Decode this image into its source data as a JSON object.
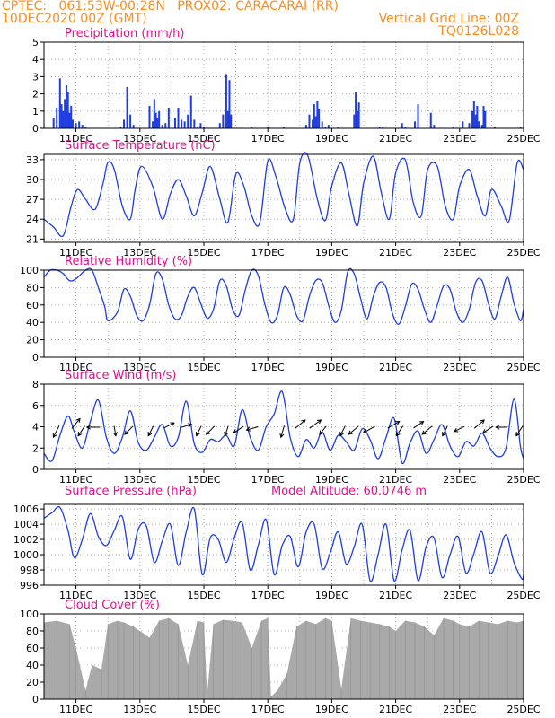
{
  "header": {
    "line1_left": "CPTEC:   061:53W-00:28N   PROX02: CARACARAI (RR)",
    "line2_left": "10DEC2020 00Z (GMT)",
    "line2_right": "Vertical Grid Line: 00Z",
    "line3_right": "TQ0126L028"
  },
  "colors": {
    "header": "#ff8c1a",
    "title": "#e0118c",
    "series": "#1f3de0",
    "cloud": "#a9a9a9",
    "arrows": "#000000"
  },
  "x_axis": {
    "ticks": [
      "11DEC",
      "13DEC",
      "15DEC",
      "17DEC",
      "19DEC",
      "21DEC",
      "23DEC",
      "25DEC"
    ],
    "range_days": [
      10,
      25
    ]
  },
  "chart_data": [
    {
      "id": "precip",
      "type": "bar",
      "title": "Precipitation (mm/h)",
      "ylim": [
        0,
        5
      ],
      "yticks": [
        "0",
        "1",
        "2",
        "3",
        "4",
        "5"
      ],
      "grid": true,
      "values_days": [
        10.3,
        10.4,
        10.5,
        10.55,
        10.6,
        10.65,
        10.7,
        10.75,
        10.8,
        10.85,
        10.9,
        11.0,
        11.1,
        11.2,
        11.3,
        12.4,
        12.5,
        12.6,
        12.7,
        12.8,
        13.3,
        13.4,
        13.45,
        13.5,
        13.55,
        13.6,
        13.7,
        13.8,
        13.9,
        14.1,
        14.2,
        14.3,
        14.4,
        14.5,
        14.6,
        14.7,
        14.8,
        14.9,
        15.0,
        15.5,
        15.6,
        15.7,
        15.75,
        15.8,
        15.85,
        16.5,
        17.0,
        17.5,
        18.2,
        18.3,
        18.4,
        18.45,
        18.5,
        18.55,
        18.6,
        18.7,
        18.8,
        18.9,
        19.2,
        19.7,
        19.75,
        19.8,
        19.85,
        20.5,
        20.6,
        21.2,
        21.3,
        21.6,
        21.7,
        22.1,
        22.2,
        22.8,
        23.1,
        23.3,
        23.4,
        23.45,
        23.5,
        23.55,
        23.6,
        23.7,
        23.75,
        23.8,
        24.1,
        24.9
      ],
      "values_mm": [
        0.6,
        1.2,
        2.9,
        1.4,
        1.0,
        1.7,
        2.5,
        2.1,
        0.9,
        1.3,
        0.5,
        0.3,
        0.4,
        0.2,
        0.1,
        0.1,
        0.5,
        2.4,
        0.8,
        0.2,
        1.3,
        0.4,
        1.7,
        0.9,
        0.6,
        1.0,
        0.2,
        0.3,
        1.2,
        0.6,
        1.2,
        0.5,
        0.4,
        0.8,
        1.9,
        0.5,
        0.1,
        0.3,
        0.1,
        0.3,
        0.8,
        3.1,
        1.0,
        2.8,
        0.8,
        0.1,
        0.1,
        0.1,
        0.2,
        0.8,
        0.5,
        1.4,
        0.7,
        1.6,
        1.1,
        0.4,
        0.1,
        0.2,
        0.1,
        0.8,
        2.1,
        1.0,
        1.5,
        0.1,
        0.1,
        0.3,
        0.1,
        0.4,
        1.4,
        0.9,
        0.2,
        0.1,
        0.4,
        0.3,
        1.0,
        1.6,
        0.8,
        1.3,
        0.4,
        0.2,
        1.3,
        1.0,
        0.1,
        0.1
      ]
    },
    {
      "id": "temp",
      "type": "line",
      "title": "Surface Temperature (nC)",
      "ylim": [
        20.5,
        33.8
      ],
      "yticks": [
        "21",
        "24",
        "27",
        "30",
        "33"
      ],
      "grid": true,
      "x_days": [
        10.0,
        10.3,
        10.6,
        10.85,
        11.05,
        11.3,
        11.6,
        11.85,
        12.0,
        12.2,
        12.45,
        12.7,
        12.85,
        13.05,
        13.4,
        13.7,
        13.95,
        14.2,
        14.45,
        14.7,
        14.95,
        15.2,
        15.5,
        15.75,
        16.0,
        16.25,
        16.5,
        16.75,
        17.0,
        17.25,
        17.55,
        17.8,
        18.0,
        18.25,
        18.55,
        18.8,
        19.0,
        19.3,
        19.55,
        19.8,
        20.0,
        20.3,
        20.55,
        20.8,
        21.0,
        21.3,
        21.55,
        21.8,
        22.0,
        22.3,
        22.55,
        22.8,
        23.0,
        23.3,
        23.55,
        23.8,
        24.0,
        24.3,
        24.55,
        24.8,
        25.0
      ],
      "values": [
        24.0,
        22.8,
        21.5,
        26.0,
        28.5,
        27.0,
        25.5,
        29.5,
        32.6,
        31.5,
        26.0,
        24.0,
        28.5,
        32.0,
        29.0,
        24.0,
        27.8,
        30.0,
        27.5,
        24.5,
        28.0,
        32.0,
        27.0,
        23.5,
        30.8,
        29.0,
        24.5,
        23.5,
        32.8,
        30.5,
        25.5,
        24.0,
        32.5,
        33.6,
        27.0,
        23.8,
        29.0,
        32.5,
        27.5,
        23.0,
        29.5,
        33.5,
        28.0,
        24.0,
        31.0,
        33.0,
        26.5,
        24.5,
        31.5,
        32.0,
        26.0,
        24.0,
        29.0,
        31.5,
        27.5,
        24.5,
        28.5,
        26.0,
        23.8,
        32.5,
        31.5
      ]
    },
    {
      "id": "rh",
      "type": "line",
      "title": "Relative Humidity (%)",
      "ylim": [
        0,
        100
      ],
      "yticks": [
        "0",
        "20",
        "40",
        "60",
        "80",
        "100"
      ],
      "grid": true,
      "x_days": [
        10.0,
        10.2,
        10.4,
        10.6,
        10.8,
        11.0,
        11.3,
        11.5,
        11.7,
        11.9,
        12.0,
        12.3,
        12.5,
        12.7,
        12.9,
        13.1,
        13.3,
        13.5,
        13.7,
        13.9,
        14.1,
        14.3,
        14.5,
        14.7,
        14.9,
        15.1,
        15.3,
        15.5,
        15.7,
        15.9,
        16.1,
        16.3,
        16.5,
        16.7,
        16.9,
        17.1,
        17.3,
        17.5,
        17.7,
        17.9,
        18.1,
        18.3,
        18.5,
        18.7,
        18.9,
        19.1,
        19.3,
        19.5,
        19.7,
        19.9,
        20.1,
        20.3,
        20.5,
        20.7,
        20.9,
        21.1,
        21.3,
        21.5,
        21.7,
        21.9,
        22.1,
        22.3,
        22.5,
        22.7,
        22.9,
        23.1,
        23.3,
        23.5,
        23.7,
        23.9,
        24.1,
        24.3,
        24.5,
        24.7,
        24.9,
        25.0
      ],
      "values": [
        92,
        100,
        100,
        96,
        88,
        90,
        100,
        100,
        80,
        58,
        42,
        52,
        78,
        70,
        48,
        42,
        60,
        96,
        90,
        60,
        44,
        48,
        70,
        80,
        62,
        45,
        55,
        88,
        82,
        55,
        48,
        78,
        100,
        94,
        62,
        40,
        48,
        80,
        72,
        48,
        42,
        70,
        88,
        86,
        60,
        40,
        54,
        98,
        96,
        68,
        44,
        70,
        86,
        80,
        50,
        38,
        58,
        84,
        78,
        55,
        40,
        60,
        82,
        78,
        52,
        40,
        55,
        86,
        88,
        62,
        44,
        70,
        92,
        62,
        42,
        55
      ]
    },
    {
      "id": "wind",
      "type": "line",
      "title": "Surface Wind (m/s)",
      "ylim": [
        0,
        8
      ],
      "yticks": [
        "0",
        "2",
        "4",
        "6",
        "8"
      ],
      "grid": true,
      "x_days": [
        10.0,
        10.25,
        10.5,
        10.75,
        10.95,
        11.2,
        11.45,
        11.7,
        11.95,
        12.2,
        12.45,
        12.7,
        12.95,
        13.2,
        13.45,
        13.7,
        13.95,
        14.2,
        14.45,
        14.7,
        14.95,
        15.2,
        15.45,
        15.7,
        15.95,
        16.2,
        16.45,
        16.7,
        16.95,
        17.2,
        17.45,
        17.7,
        17.95,
        18.2,
        18.45,
        18.7,
        18.95,
        19.2,
        19.45,
        19.7,
        19.95,
        20.2,
        20.45,
        20.7,
        20.95,
        21.2,
        21.45,
        21.7,
        21.95,
        22.2,
        22.45,
        22.7,
        22.95,
        23.2,
        23.45,
        23.7,
        23.95,
        24.2,
        24.45,
        24.7,
        24.9,
        25.0
      ],
      "values": [
        1.5,
        0.8,
        3.2,
        5.0,
        3.5,
        2.0,
        4.5,
        6.5,
        3.0,
        1.5,
        3.0,
        5.5,
        2.5,
        1.8,
        3.0,
        4.2,
        2.2,
        3.0,
        6.4,
        2.4,
        1.6,
        2.8,
        2.6,
        3.2,
        2.2,
        5.6,
        3.0,
        1.8,
        4.0,
        5.2,
        7.3,
        3.0,
        1.2,
        2.8,
        2.0,
        3.5,
        1.8,
        3.2,
        2.6,
        1.8,
        3.8,
        2.8,
        1.0,
        3.0,
        4.8,
        0.6,
        2.5,
        3.6,
        1.5,
        2.8,
        4.2,
        2.2,
        1.2,
        2.6,
        2.2,
        3.4,
        2.0,
        1.2,
        2.0,
        6.6,
        2.2,
        1.0
      ],
      "arrows": [
        {
          "day": 10.45,
          "u": -0.35,
          "v": -0.7
        },
        {
          "day": 10.9,
          "u": 0.5,
          "v": 0.6
        },
        {
          "day": 11.25,
          "u": -0.4,
          "v": -0.6
        },
        {
          "day": 11.7,
          "u": -0.8,
          "v": 0.0
        },
        {
          "day": 12.2,
          "u": 0.1,
          "v": -0.6
        },
        {
          "day": 12.75,
          "u": -0.5,
          "v": -0.5
        },
        {
          "day": 13.4,
          "u": -0.3,
          "v": -0.6
        },
        {
          "day": 13.8,
          "u": 0.6,
          "v": 0.3
        },
        {
          "day": 14.3,
          "u": 0.7,
          "v": 0.2
        },
        {
          "day": 14.9,
          "u": -0.3,
          "v": -0.6
        },
        {
          "day": 15.3,
          "u": -0.5,
          "v": -0.5
        },
        {
          "day": 15.75,
          "u": -0.2,
          "v": -0.6
        },
        {
          "day": 16.2,
          "u": -0.6,
          "v": -0.4
        },
        {
          "day": 16.65,
          "u": -0.7,
          "v": -0.2
        },
        {
          "day": 17.5,
          "u": -0.2,
          "v": -0.7
        },
        {
          "day": 17.9,
          "u": 0.6,
          "v": 0.5
        },
        {
          "day": 18.35,
          "u": 0.7,
          "v": 0.5
        },
        {
          "day": 18.8,
          "u": -0.4,
          "v": -0.5
        },
        {
          "day": 19.4,
          "u": -0.3,
          "v": -0.6
        },
        {
          "day": 19.8,
          "u": -0.6,
          "v": -0.5
        },
        {
          "day": 20.3,
          "u": -0.7,
          "v": -0.4
        },
        {
          "day": 20.8,
          "u": 0.7,
          "v": 0.4
        },
        {
          "day": 21.2,
          "u": -0.4,
          "v": -0.6
        },
        {
          "day": 21.6,
          "u": 0.6,
          "v": 0.4
        },
        {
          "day": 22.1,
          "u": -0.6,
          "v": -0.5
        },
        {
          "day": 22.6,
          "u": -0.3,
          "v": -0.6
        },
        {
          "day": 23.1,
          "u": -0.6,
          "v": -0.3
        },
        {
          "day": 23.5,
          "u": 0.6,
          "v": 0.5
        },
        {
          "day": 24.0,
          "u": -0.6,
          "v": -0.4
        },
        {
          "day": 24.45,
          "u": -0.7,
          "v": 0.0
        },
        {
          "day": 24.95,
          "u": -0.4,
          "v": -0.6
        }
      ]
    },
    {
      "id": "pres",
      "type": "line",
      "title": "Surface Pressure (hPa)",
      "subtitle": "Model Altitude: 60.0746 m",
      "ylim": [
        996,
        1006.6
      ],
      "yticks": [
        "996",
        "998",
        "1000",
        "1002",
        "1004",
        "1006"
      ],
      "grid": true,
      "x_days": [
        10.0,
        10.25,
        10.5,
        10.75,
        10.95,
        11.2,
        11.45,
        11.7,
        11.95,
        12.2,
        12.45,
        12.7,
        12.95,
        13.2,
        13.45,
        13.7,
        13.95,
        14.2,
        14.45,
        14.7,
        14.95,
        15.2,
        15.45,
        15.7,
        15.95,
        16.2,
        16.45,
        16.7,
        16.95,
        17.2,
        17.45,
        17.7,
        17.95,
        18.2,
        18.45,
        18.7,
        18.95,
        19.2,
        19.45,
        19.7,
        19.95,
        20.2,
        20.45,
        20.7,
        20.95,
        21.2,
        21.45,
        21.7,
        21.95,
        22.2,
        22.45,
        22.7,
        22.95,
        23.2,
        23.45,
        23.7,
        23.95,
        24.2,
        24.45,
        24.7,
        24.95,
        25.0
      ],
      "values": [
        1004.8,
        1005.5,
        1006.2,
        1003.2,
        999.6,
        1002.0,
        1005.4,
        1002.4,
        1001.2,
        1003.2,
        1005.0,
        999.4,
        1003.4,
        1003.8,
        999.0,
        1001.8,
        1004.0,
        998.6,
        1003.0,
        1006.0,
        997.4,
        1002.2,
        1002.0,
        999.0,
        1002.2,
        1004.2,
        998.0,
        1001.2,
        1004.6,
        997.4,
        1001.2,
        1002.4,
        998.4,
        1003.0,
        1004.0,
        998.2,
        1000.2,
        1003.0,
        998.8,
        1001.0,
        1004.0,
        996.6,
        1000.0,
        1004.0,
        996.6,
        1000.6,
        1003.2,
        996.6,
        1001.0,
        1002.2,
        997.0,
        1000.0,
        1002.4,
        997.6,
        1000.2,
        1003.0,
        997.6,
        999.8,
        1002.6,
        999.0,
        996.8,
        997.4
      ]
    },
    {
      "id": "cloud",
      "type": "area",
      "title": "Cloud Cover (%)",
      "ylim": [
        0,
        100
      ],
      "yticks": [
        "0",
        "20",
        "40",
        "60",
        "80",
        "100"
      ],
      "grid": true,
      "x_days": [
        10.0,
        10.4,
        10.8,
        11.0,
        11.3,
        11.5,
        11.8,
        12.0,
        12.3,
        12.5,
        12.8,
        13.0,
        13.3,
        13.6,
        13.9,
        14.2,
        14.5,
        14.8,
        15.0,
        15.1,
        15.3,
        15.6,
        15.9,
        16.2,
        16.5,
        16.8,
        17.0,
        17.1,
        17.3,
        17.6,
        17.9,
        18.2,
        18.5,
        18.8,
        19.0,
        19.3,
        19.6,
        19.9,
        20.2,
        20.5,
        20.8,
        21.0,
        21.3,
        21.6,
        21.9,
        22.2,
        22.5,
        22.8,
        23.0,
        23.3,
        23.6,
        23.9,
        24.2,
        24.5,
        24.8,
        25.0
      ],
      "values": [
        90,
        92,
        88,
        60,
        10,
        40,
        35,
        88,
        92,
        90,
        85,
        80,
        72,
        92,
        95,
        88,
        40,
        92,
        90,
        5,
        88,
        93,
        92,
        90,
        60,
        92,
        95,
        3,
        10,
        30,
        85,
        92,
        88,
        95,
        92,
        12,
        95,
        92,
        90,
        88,
        85,
        80,
        92,
        90,
        85,
        75,
        95,
        92,
        88,
        85,
        92,
        90,
        88,
        92,
        90,
        92
      ]
    }
  ]
}
